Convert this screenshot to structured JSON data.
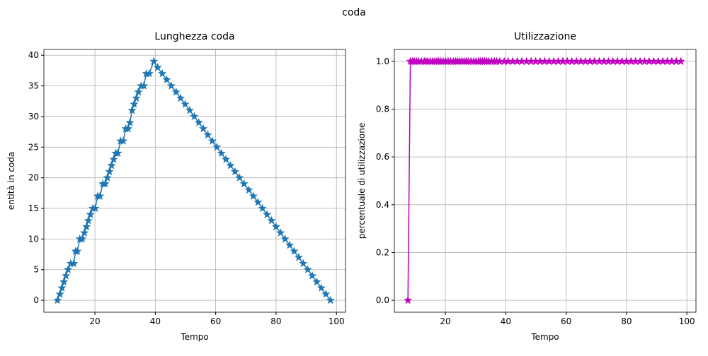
{
  "title": "coda",
  "chart_data": [
    {
      "type": "line",
      "title": "Lunghezza coda",
      "x_label": "Tempo",
      "y_label": "entità in coda",
      "grid": true,
      "marker": "star",
      "xlim": [
        3.1,
        103
      ],
      "xticks": [
        20,
        40,
        60,
        80,
        100
      ],
      "ylim": [
        -1.95,
        40.95
      ],
      "yticks": [
        0,
        5,
        10,
        15,
        20,
        25,
        30,
        35,
        40
      ],
      "series": [
        {
          "name": "Lunghezza coda",
          "color": "#1f77b4",
          "x": [
            7.6,
            8.4,
            9.1,
            9.7,
            10.4,
            11.1,
            12.0,
            13.0,
            13.6,
            14.2,
            15.0,
            15.8,
            16.5,
            17.2,
            17.8,
            18.5,
            19.3,
            20.1,
            20.9,
            21.7,
            22.6,
            23.4,
            24.1,
            24.8,
            25.5,
            26.2,
            26.9,
            27.6,
            28.5,
            29.4,
            30.2,
            31.0,
            31.6,
            32.3,
            33.0,
            33.7,
            34.4,
            35.3,
            36.2,
            37.0,
            38.0,
            39.5,
            40.8,
            42.3,
            43.8,
            45.3,
            46.9,
            48.4,
            49.9,
            51.4,
            52.9,
            54.4,
            55.9,
            57.4,
            58.9,
            60.4,
            61.9,
            63.4,
            64.9,
            66.4,
            67.9,
            69.4,
            71.0,
            72.5,
            74.0,
            75.5,
            77.0,
            78.5,
            80.0,
            81.5,
            83.0,
            84.5,
            86.0,
            87.5,
            89.0,
            90.5,
            92.0,
            93.5,
            95.0,
            96.5,
            98.0
          ],
          "values": [
            0,
            1,
            2,
            3,
            4,
            5,
            6,
            6,
            8,
            8,
            10,
            10,
            11,
            12,
            13,
            14,
            15,
            15,
            17,
            17,
            19,
            19,
            20,
            21,
            22,
            23,
            24,
            24,
            26,
            26,
            28,
            28,
            29,
            31,
            32,
            33,
            34,
            35,
            35,
            37,
            37,
            39,
            38,
            37,
            36,
            35,
            34,
            33,
            32,
            31,
            30,
            29,
            28,
            27,
            26,
            25,
            24,
            23,
            22,
            21,
            20,
            19,
            18,
            17,
            16,
            15,
            14,
            13,
            12,
            11,
            10,
            9,
            8,
            7,
            6,
            5,
            4,
            3,
            2,
            1,
            0
          ]
        }
      ]
    },
    {
      "type": "line",
      "title": "Utilizzazione",
      "x_label": "Tempo",
      "y_label": "percentuale di utilizzazione",
      "grid": true,
      "marker": "star",
      "xlim": [
        3.1,
        103
      ],
      "xticks": [
        20,
        40,
        60,
        80,
        100
      ],
      "ylim": [
        -0.05,
        1.05
      ],
      "yticks": [
        {
          "value": 0,
          "label": "0.0"
        },
        0.2,
        0.4,
        0.6,
        0.8,
        {
          "value": 1,
          "label": "1.0"
        }
      ],
      "series": [
        {
          "name": "Utilizzazione",
          "color": "#bf00bf",
          "x": [
            7.6,
            8.4,
            9.1,
            9.7,
            10.4,
            11.1,
            12.0,
            13.0,
            13.6,
            14.2,
            15.0,
            15.8,
            16.5,
            17.2,
            17.8,
            18.5,
            19.3,
            20.1,
            20.9,
            21.7,
            22.6,
            23.4,
            24.1,
            24.8,
            25.5,
            26.2,
            26.9,
            27.6,
            28.5,
            29.4,
            30.2,
            31.0,
            31.6,
            32.3,
            33.0,
            33.7,
            34.4,
            35.3,
            36.2,
            37.0,
            38.0,
            39.5,
            40.8,
            42.3,
            43.8,
            45.3,
            46.9,
            48.4,
            49.9,
            51.4,
            52.9,
            54.4,
            55.9,
            57.4,
            58.9,
            60.4,
            61.9,
            63.4,
            64.9,
            66.4,
            67.9,
            69.4,
            71.0,
            72.5,
            74.0,
            75.5,
            77.0,
            78.5,
            80.0,
            81.5,
            83.0,
            84.5,
            86.0,
            87.5,
            89.0,
            90.5,
            92.0,
            93.5,
            95.0,
            96.5,
            98.0
          ],
          "values": [
            0,
            1,
            1,
            1,
            1,
            1,
            1,
            1,
            1,
            1,
            1,
            1,
            1,
            1,
            1,
            1,
            1,
            1,
            1,
            1,
            1,
            1,
            1,
            1,
            1,
            1,
            1,
            1,
            1,
            1,
            1,
            1,
            1,
            1,
            1,
            1,
            1,
            1,
            1,
            1,
            1,
            1,
            1,
            1,
            1,
            1,
            1,
            1,
            1,
            1,
            1,
            1,
            1,
            1,
            1,
            1,
            1,
            1,
            1,
            1,
            1,
            1,
            1,
            1,
            1,
            1,
            1,
            1,
            1,
            1,
            1,
            1,
            1,
            1,
            1,
            1,
            1,
            1,
            1,
            1,
            1
          ]
        }
      ]
    }
  ]
}
